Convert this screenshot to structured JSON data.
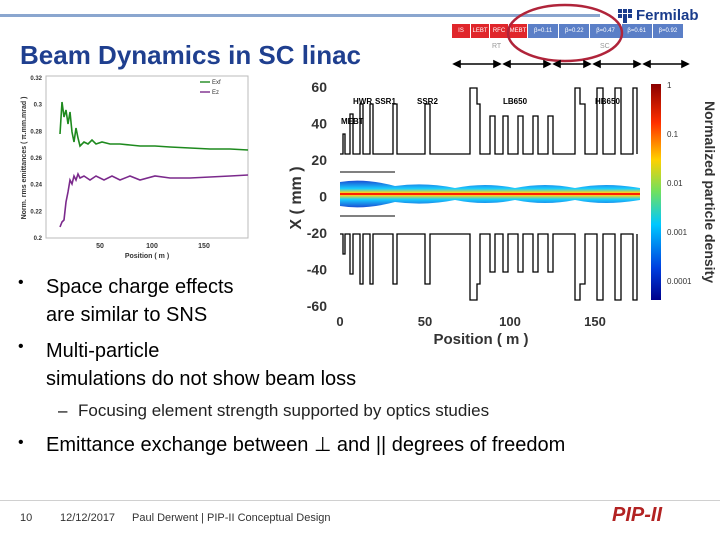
{
  "slide": {
    "title": "Beam Dynamics in SC linac",
    "logo_text": "Fermilab",
    "pip_logo": "PIP-II",
    "footer": {
      "page": "10",
      "date": "12/12/2017",
      "author": "Paul Derwent | PIP-II Conceptual Design"
    }
  },
  "lattice_bar": {
    "segments": [
      {
        "label": "IS",
        "color": "#e0262b"
      },
      {
        "label": "LEBT",
        "color": "#e0262b"
      },
      {
        "label": "RFC",
        "color": "#e0262b"
      },
      {
        "label": "MEBT",
        "color": "#e0262b"
      },
      {
        "label": "β=0.11",
        "color": "#5b7fc7"
      },
      {
        "label": "β=0.22",
        "color": "#5b7fc7"
      },
      {
        "label": "β=0.47",
        "color": "#5b7fc7"
      },
      {
        "label": "β=0.61",
        "color": "#5b7fc7"
      },
      {
        "label": "β=0.92",
        "color": "#5b7fc7"
      }
    ],
    "rt_label": "RT",
    "sc_label": "SC"
  },
  "emittance_plot": {
    "ylabel": "Norm. rms emittances ( π.mm.mrad )",
    "xlabel": "Position ( m )",
    "yticks": [
      "0.32",
      "0.3",
      "0.28",
      "0.26",
      "0.24",
      "0.22",
      "0.2"
    ],
    "xticks": [
      "50",
      "100",
      "150"
    ],
    "legend": [
      {
        "name": "Exf",
        "color": "#1e8a1e"
      },
      {
        "name": "Ez",
        "color": "#7b2a8c"
      }
    ]
  },
  "beam_plot": {
    "xlabel": "Position ( m )",
    "ylabel": "X ( mm )",
    "yticks": [
      "60",
      "40",
      "20",
      "0",
      "-20",
      "-40",
      "-60"
    ],
    "xticks": [
      "0",
      "50",
      "100",
      "150"
    ],
    "section_labels": [
      "HWR",
      "SSR1",
      "SSR2",
      "LB650",
      "HB650",
      "MEBT"
    ],
    "colorbar_label": "Normalized particle density",
    "colorbar_ticks": [
      "1",
      "0.1",
      "0.01",
      "0.001",
      "0.0001"
    ]
  },
  "bullets": [
    {
      "text": "Space charge effects are similar to SNS",
      "line1": "Space charge effects",
      "line2": "are similar to SNS"
    },
    {
      "line1": "Multi-particle",
      "line2": "simulations do not show beam loss"
    },
    {
      "sub": "Focusing element strength supported by optics studies"
    },
    {
      "text": "Emittance exchange between ⊥ and || degrees of freedom"
    }
  ]
}
